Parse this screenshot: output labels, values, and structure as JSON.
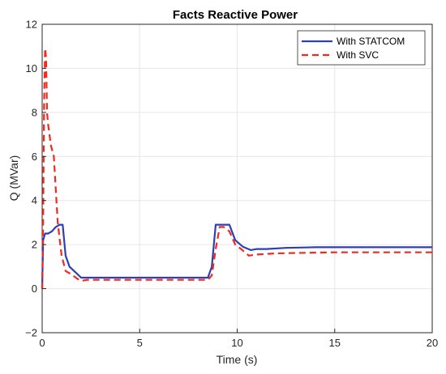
{
  "chart_data": {
    "type": "line",
    "title": "Facts Reactive Power",
    "xlabel": "Time (s)",
    "ylabel": "Q (MVar)",
    "xlim": [
      0,
      20
    ],
    "ylim": [
      -2,
      12
    ],
    "xticks": [
      0,
      5,
      10,
      15,
      20
    ],
    "yticks": [
      -2,
      0,
      2,
      4,
      6,
      8,
      10,
      12
    ],
    "xtick_labels": [
      "0",
      "5",
      "10",
      "15",
      "20"
    ],
    "ytick_labels": [
      "−2",
      "0",
      "2",
      "4",
      "6",
      "8",
      "10",
      "12"
    ],
    "grid": true,
    "legend_position": "top-right",
    "series": [
      {
        "name": "With STATCOM",
        "color": "#2e3fb4",
        "style": "solid",
        "x": [
          0,
          0.05,
          0.15,
          0.3,
          0.5,
          0.7,
          0.9,
          1.05,
          1.2,
          1.4,
          1.7,
          2.0,
          2.3,
          3,
          5,
          7,
          8.5,
          8.7,
          8.9,
          9.1,
          9.3,
          9.6,
          9.9,
          10.3,
          10.7,
          11.0,
          11.5,
          12.5,
          14,
          16,
          18,
          20
        ],
        "y": [
          0,
          2.2,
          2.5,
          2.5,
          2.6,
          2.8,
          2.9,
          2.9,
          1.5,
          1.0,
          0.75,
          0.5,
          0.5,
          0.5,
          0.5,
          0.5,
          0.5,
          1.0,
          2.9,
          2.9,
          2.9,
          2.9,
          2.2,
          1.9,
          1.75,
          1.8,
          1.8,
          1.85,
          1.88,
          1.88,
          1.88,
          1.88
        ]
      },
      {
        "name": "With SVC",
        "color": "#f02a1e",
        "style": "dashed",
        "x": [
          0,
          0.05,
          0.1,
          0.15,
          0.2,
          0.25,
          0.3,
          0.45,
          0.6,
          0.8,
          1.0,
          1.2,
          1.5,
          1.8,
          2.0,
          2.3,
          3,
          5,
          7,
          8.5,
          8.7,
          8.9,
          9.1,
          9.3,
          9.6,
          9.9,
          10.2,
          10.6,
          11.0,
          12,
          13,
          15,
          17,
          20
        ],
        "y": [
          0,
          3.0,
          8.5,
          10.9,
          10.5,
          8.0,
          7.5,
          6.5,
          6.0,
          3.0,
          1.5,
          0.8,
          0.65,
          0.45,
          0.35,
          0.4,
          0.4,
          0.4,
          0.4,
          0.4,
          0.6,
          1.8,
          2.8,
          2.8,
          2.6,
          2.0,
          1.8,
          1.5,
          1.55,
          1.6,
          1.62,
          1.65,
          1.65,
          1.65
        ]
      }
    ]
  }
}
